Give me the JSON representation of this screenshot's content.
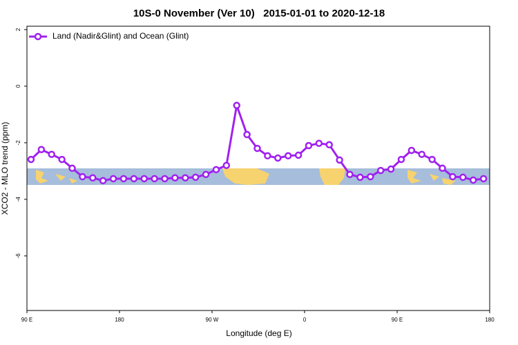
{
  "chart_data": {
    "type": "line",
    "title": "10S-0 November (Ver 10)   2015-01-01 to 2020-12-18",
    "xlabel": "Longitude (deg E)",
    "ylabel": "XCO2 - MLO trend (ppm)",
    "x": [
      94,
      104,
      114,
      124,
      134,
      144,
      154,
      164,
      174,
      184,
      194,
      204,
      214,
      224,
      234,
      244,
      254,
      264,
      274,
      284,
      294,
      304,
      314,
      324,
      334,
      344,
      354,
      364,
      374,
      384,
      394,
      404,
      414,
      424,
      434,
      444,
      454,
      464,
      474,
      484,
      494,
      504,
      514,
      524,
      534
    ],
    "series": [
      {
        "name": "Land (Nadir&Glint) and Ocean (Glint)",
        "color": "#a020f0",
        "values": [
          -2.59,
          -2.24,
          -2.41,
          -2.59,
          -2.9,
          -3.2,
          -3.24,
          -3.34,
          -3.27,
          -3.27,
          -3.27,
          -3.27,
          -3.27,
          -3.27,
          -3.24,
          -3.24,
          -3.22,
          -3.12,
          -2.95,
          -2.8,
          -0.68,
          -1.71,
          -2.2,
          -2.46,
          -2.54,
          -2.46,
          -2.44,
          -2.1,
          -2.02,
          -2.07,
          -2.61,
          -3.12,
          -3.22,
          -3.2,
          -2.98,
          -2.93,
          -2.59,
          -2.27,
          -2.41,
          -2.59,
          -2.9,
          -3.2,
          -3.22,
          -3.32,
          -3.27
        ]
      }
    ],
    "xlim": [
      90,
      540
    ],
    "xticks": [
      {
        "value": 90,
        "label": "90 E"
      },
      180,
      {
        "value": 270,
        "label": "90 W"
      },
      {
        "value": 360,
        "label": "0"
      },
      {
        "value": 450,
        "label": "90 E"
      },
      {
        "value": 540,
        "label": "180"
      }
    ],
    "ylim": [
      -7.93,
      2.12
    ],
    "yticks": [
      2,
      0,
      -2,
      -4,
      -6
    ],
    "legend": "top-left"
  }
}
